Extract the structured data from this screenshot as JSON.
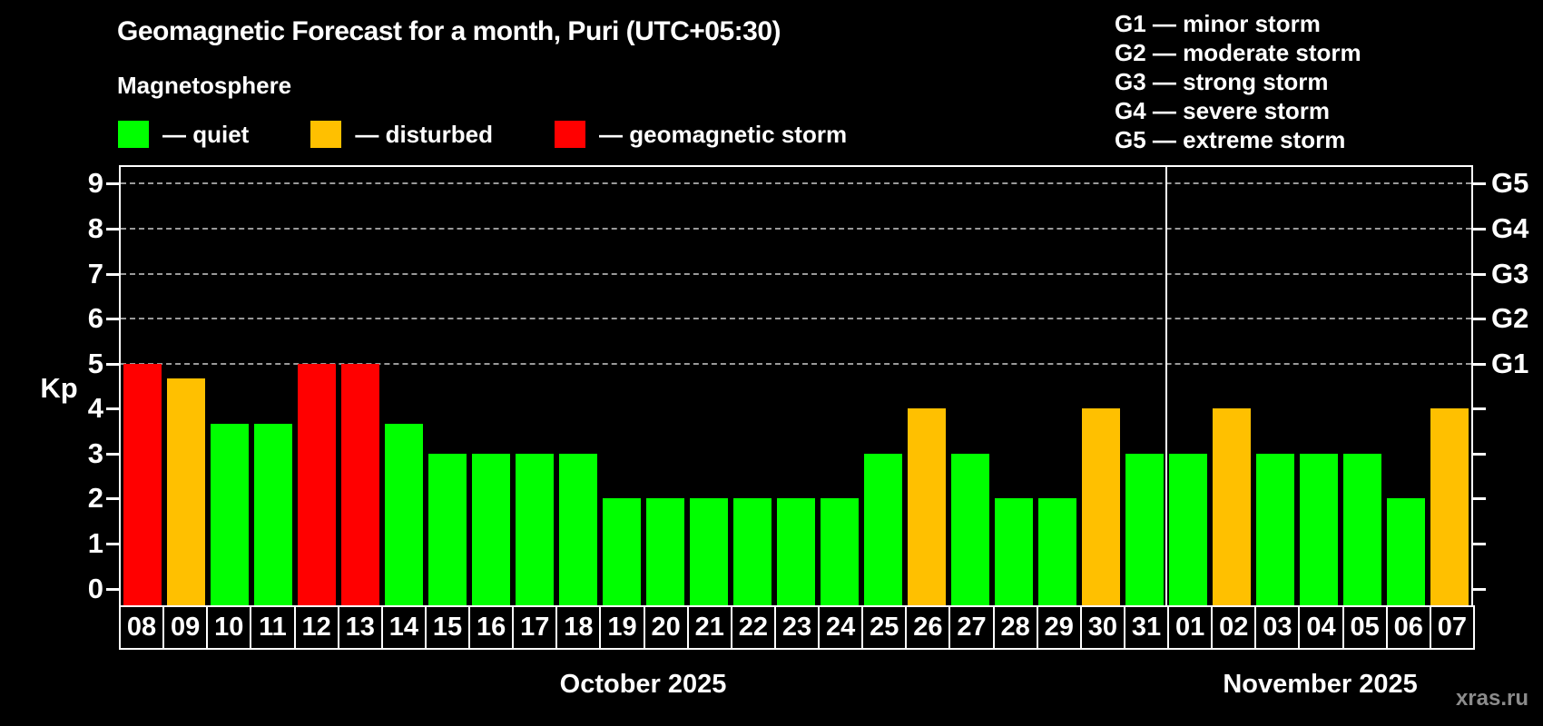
{
  "title": "Geomagnetic Forecast for a month, Puri (UTC+05:30)",
  "subtitle": "Magnetosphere",
  "watermark": "xras.ru",
  "colors": {
    "quiet": "#00ff00",
    "disturbed": "#ffc000",
    "storm": "#ff0000",
    "background": "#000000",
    "grid": "#9a9a9a",
    "axis": "#ffffff",
    "watermark": "#8c8c8c"
  },
  "legend": {
    "items": [
      {
        "label": "— quiet",
        "status": "quiet"
      },
      {
        "label": "— disturbed",
        "status": "disturbed"
      },
      {
        "label": "— geomagnetic storm",
        "status": "storm"
      }
    ]
  },
  "g_legend": [
    "G1 — minor storm",
    "G2 — moderate storm",
    "G3 — strong storm",
    "G4 — severe storm",
    "G5 — extreme storm"
  ],
  "axis": {
    "kp_label": "Kp",
    "y_ticks": [
      0,
      1,
      2,
      3,
      4,
      5,
      6,
      7,
      8,
      9
    ],
    "g_ticks": [
      {
        "value": 5,
        "label": "G1"
      },
      {
        "value": 6,
        "label": "G2"
      },
      {
        "value": 7,
        "label": "G3"
      },
      {
        "value": 8,
        "label": "G4"
      },
      {
        "value": 9,
        "label": "G5"
      }
    ]
  },
  "chart_data": {
    "type": "bar",
    "title": "Geomagnetic Forecast for a month, Puri (UTC+05:30)",
    "xlabel": "",
    "ylabel": "Kp",
    "ylim": [
      0,
      9
    ],
    "grid_levels": [
      5,
      6,
      7,
      8,
      9
    ],
    "legend_position": "top",
    "months": [
      {
        "label": "October 2025",
        "days": 24
      },
      {
        "label": "November 2025",
        "days": 7
      }
    ],
    "categories": [
      "08",
      "09",
      "10",
      "11",
      "12",
      "13",
      "14",
      "15",
      "16",
      "17",
      "18",
      "19",
      "20",
      "21",
      "22",
      "23",
      "24",
      "25",
      "26",
      "27",
      "28",
      "29",
      "30",
      "31",
      "01",
      "02",
      "03",
      "04",
      "05",
      "06",
      "07"
    ],
    "values": [
      5,
      4.67,
      3.67,
      3.67,
      5,
      5,
      3.67,
      3,
      3,
      3,
      3,
      2,
      2,
      2,
      2,
      2,
      2,
      3,
      4,
      3,
      2,
      2,
      4,
      3,
      3,
      4,
      3,
      3,
      3,
      2,
      4
    ],
    "bars": [
      {
        "day": "08",
        "value": 5,
        "status": "storm"
      },
      {
        "day": "09",
        "value": 4.67,
        "status": "disturbed"
      },
      {
        "day": "10",
        "value": 3.67,
        "status": "quiet"
      },
      {
        "day": "11",
        "value": 3.67,
        "status": "quiet"
      },
      {
        "day": "12",
        "value": 5,
        "status": "storm"
      },
      {
        "day": "13",
        "value": 5,
        "status": "storm"
      },
      {
        "day": "14",
        "value": 3.67,
        "status": "quiet"
      },
      {
        "day": "15",
        "value": 3,
        "status": "quiet"
      },
      {
        "day": "16",
        "value": 3,
        "status": "quiet"
      },
      {
        "day": "17",
        "value": 3,
        "status": "quiet"
      },
      {
        "day": "18",
        "value": 3,
        "status": "quiet"
      },
      {
        "day": "19",
        "value": 2,
        "status": "quiet"
      },
      {
        "day": "20",
        "value": 2,
        "status": "quiet"
      },
      {
        "day": "21",
        "value": 2,
        "status": "quiet"
      },
      {
        "day": "22",
        "value": 2,
        "status": "quiet"
      },
      {
        "day": "23",
        "value": 2,
        "status": "quiet"
      },
      {
        "day": "24",
        "value": 2,
        "status": "quiet"
      },
      {
        "day": "25",
        "value": 3,
        "status": "quiet"
      },
      {
        "day": "26",
        "value": 4,
        "status": "disturbed"
      },
      {
        "day": "27",
        "value": 3,
        "status": "quiet"
      },
      {
        "day": "28",
        "value": 2,
        "status": "quiet"
      },
      {
        "day": "29",
        "value": 2,
        "status": "quiet"
      },
      {
        "day": "30",
        "value": 4,
        "status": "disturbed"
      },
      {
        "day": "31",
        "value": 3,
        "status": "quiet"
      },
      {
        "day": "01",
        "value": 3,
        "status": "quiet"
      },
      {
        "day": "02",
        "value": 4,
        "status": "disturbed"
      },
      {
        "day": "03",
        "value": 3,
        "status": "quiet"
      },
      {
        "day": "04",
        "value": 3,
        "status": "quiet"
      },
      {
        "day": "05",
        "value": 3,
        "status": "quiet"
      },
      {
        "day": "06",
        "value": 2,
        "status": "quiet"
      },
      {
        "day": "07",
        "value": 4,
        "status": "disturbed"
      }
    ]
  }
}
